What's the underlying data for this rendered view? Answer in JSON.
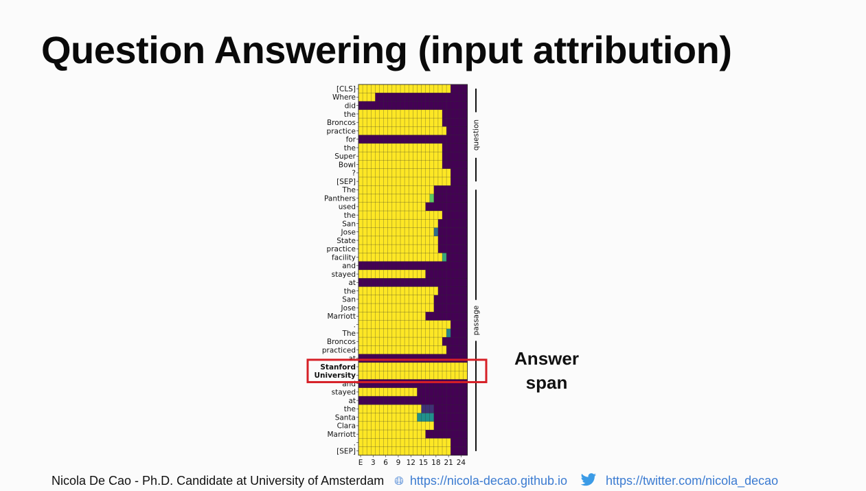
{
  "slide": {
    "title": "Question Answering (input attribution)",
    "answer_label": "Answer\nspan"
  },
  "footer": {
    "author": "Nicola De Cao - Ph.D. Candidate at University of Amsterdam",
    "website": "https://nicola-decao.github.io",
    "twitter": "https://twitter.com/nicola_decao",
    "globe_icon": "globe-icon",
    "twitter_icon": "twitter-bird-icon"
  },
  "colors": {
    "yellow": "#fde725",
    "dark": "#440154",
    "highlight_box": "#d61f26",
    "link": "#3b7bd1"
  },
  "chart_data": {
    "type": "heatmap",
    "x_tick_labels": [
      "E",
      "3",
      "6",
      "9",
      "12",
      "15",
      "18",
      "21",
      "24"
    ],
    "x_ticks": [
      0,
      3,
      6,
      9,
      12,
      15,
      18,
      21,
      24
    ],
    "n_columns": 26,
    "tokens": [
      "[CLS]",
      "Where",
      "did",
      "the",
      "Broncos",
      "practice",
      "for",
      "the",
      "Super",
      "Bowl",
      "?",
      "[SEP]",
      "The",
      "Panthers",
      "used",
      "the",
      "San",
      "Jose",
      "State",
      "practice",
      "facility",
      "and",
      "stayed",
      "at",
      "the",
      "San",
      "Jose",
      "Marriott",
      ".",
      "The",
      "Broncos",
      "practiced",
      "at",
      "Stanford",
      "University",
      "and",
      "stayed",
      "at",
      "the",
      "Santa",
      "Clara",
      "Marriott",
      ".",
      "[SEP]"
    ],
    "bold_tokens": [
      "Stanford",
      "University"
    ],
    "values_description": "fraction of layers kept (1 = yellow) per token; bright cells extend from column E up to the last kept layer",
    "bright_until_column": [
      22,
      4,
      0,
      20,
      20,
      21,
      0,
      20,
      20,
      20,
      22,
      22,
      18,
      17,
      16,
      20,
      19,
      19,
      19,
      19,
      20,
      0,
      16,
      0,
      19,
      18,
      18,
      16,
      22,
      21,
      20,
      21,
      0,
      26,
      26,
      0,
      14,
      0,
      15,
      15,
      18,
      16,
      22,
      22
    ],
    "partial_cells": [
      {
        "row": 13,
        "col": 17,
        "value": 0.75
      },
      {
        "row": 17,
        "col": 18,
        "value": 0.35
      },
      {
        "row": 20,
        "col": 20,
        "value": 0.6
      },
      {
        "row": 29,
        "col": 21,
        "value": 0.45
      },
      {
        "row": 38,
        "col": 15,
        "value": 0.15
      },
      {
        "row": 38,
        "col": 16,
        "value": 0.15
      },
      {
        "row": 38,
        "col": 17,
        "value": 0.15
      },
      {
        "row": 39,
        "col": 14,
        "value": 0.5
      },
      {
        "row": 39,
        "col": 15,
        "value": 0.5
      },
      {
        "row": 39,
        "col": 16,
        "value": 0.5
      },
      {
        "row": 39,
        "col": 17,
        "value": 0.5
      }
    ],
    "groups": [
      {
        "label": "question",
        "start_row": 0,
        "end_row": 11
      },
      {
        "label": "passage",
        "start_row": 12,
        "end_row": 43
      }
    ],
    "highlight_rows": [
      33,
      34
    ]
  }
}
